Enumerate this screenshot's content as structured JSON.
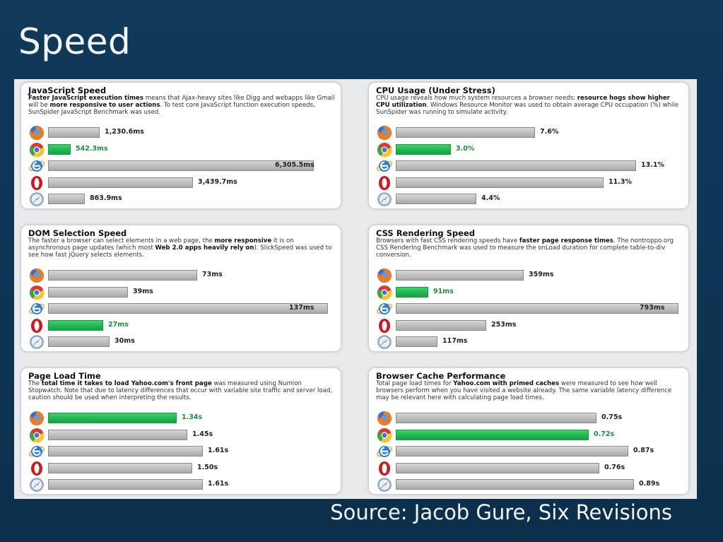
{
  "slide": {
    "title": "Speed",
    "source": "Source: Jacob Gure, Six Revisions"
  },
  "colors": {
    "background": "#0f3450",
    "bar_default": "#bdbdbd",
    "bar_best": "#20b350",
    "best_label": "#1a8f3c"
  },
  "browsers": [
    "firefox-icon",
    "chrome-icon",
    "internet-explorer-icon",
    "opera-icon",
    "safari-icon"
  ],
  "chart_data": [
    {
      "type": "bar",
      "title": "JavaScript Speed",
      "description_html": "<b>Faster JavaScript execution times</b> means that Ajax-heavy sites like Digg and webapps like Gmail will be <b>more responsive to user actions</b>. To test core JavaScript function execution speeds, SunSpider JavaScript Benchmark was used.",
      "unit": "ms",
      "values": [
        1230.6,
        542.3,
        6305.5,
        3439.7,
        863.9
      ],
      "labels": [
        "1,230.6ms",
        "542.3ms",
        "6,305.5ms",
        "3,439.7ms",
        "863.9ms"
      ],
      "best_index": 1,
      "max": 6700
    },
    {
      "type": "bar",
      "title": "CPU Usage (Under Stress)",
      "description_html": "CPU usage reveals how much system resources a browser needs: <b>resource hogs show higher CPU utilization</b>. Windows Resource Monitor was used to obtain average CPU occupation (%) while SunSpider was running to simulate activity.",
      "unit": "%",
      "values": [
        7.6,
        3.0,
        13.1,
        11.3,
        4.4
      ],
      "labels": [
        "7.6%",
        "3.0%",
        "13.1%",
        "11.3%",
        "4.4%"
      ],
      "best_index": 1,
      "max": 15.4
    },
    {
      "type": "bar",
      "title": "DOM Selection Speed",
      "description_html": "The faster a browser can select elements in a web page, the <b>more responsive</b> it is on asynchronous page updates (which most <b>Web 2.0 apps heavily rely on</b>). SlickSpeed was used to see how fast jQuery selects elements.",
      "unit": "ms",
      "values": [
        73,
        39,
        137,
        27,
        30
      ],
      "labels": [
        "73ms",
        "39ms",
        "137ms",
        "27ms",
        "30ms"
      ],
      "best_index": 3,
      "max": 137
    },
    {
      "type": "bar",
      "title": "CSS Rendering Speed",
      "description_html": "Browsers with fast CSS rendering speeds have <b>faster page response times</b>. The nontroppo.org CSS Rendering Benchmark was used to measure the onLoad duration for complete table-to-div conversion.",
      "unit": "ms",
      "values": [
        359,
        91,
        793,
        253,
        117
      ],
      "labels": [
        "359ms",
        "91ms",
        "793ms",
        "253ms",
        "117ms"
      ],
      "best_index": 1,
      "max": 793
    },
    {
      "type": "bar",
      "title": "Page Load Time",
      "description_html": "The <b>total time it takes to load Yahoo.com's front page</b> was measured using Numion Stopwatch. Note that due to latency differences that occur with variable site traffic and server load, caution should be used when interpreting the results.",
      "unit": "s",
      "values": [
        1.34,
        1.45,
        1.61,
        1.5,
        1.61
      ],
      "labels": [
        "1.34s",
        "1.45s",
        "1.61s",
        "1.50s",
        "1.61s"
      ],
      "best_index": 0,
      "max": 2.4
    },
    {
      "type": "bar",
      "title": "Browser Cache Performance",
      "description_html": "Total page load times for <b>Yahoo.com with primed caches</b> were measured to see how well browsers perform when you have visited a website already. The same variable latency difference may be relevant here with calculating page load times.",
      "unit": "s",
      "values": [
        0.75,
        0.72,
        0.87,
        0.76,
        0.89
      ],
      "labels": [
        "0.75s",
        "0.72s",
        "0.87s",
        "0.76s",
        "0.89s"
      ],
      "best_index": 1,
      "max": 1.03
    }
  ]
}
